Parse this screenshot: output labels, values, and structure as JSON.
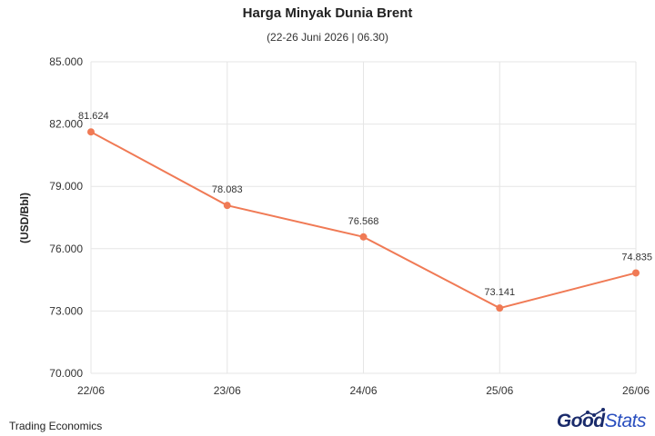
{
  "chart_data": {
    "type": "line",
    "title": "Harga Minyak Dunia Brent",
    "subtitle": "(22-26 Juni 2026 | 06.30)",
    "xlabel": "",
    "ylabel": "(USD/Bbl)",
    "categories": [
      "22/06",
      "23/06",
      "24/06",
      "25/06",
      "26/06"
    ],
    "series": [
      {
        "values": [
          81.624,
          78.083,
          76.568,
          73.141,
          74.835
        ],
        "labels": [
          "81.624",
          "78.083",
          "76.568",
          "73.141",
          "74.835"
        ],
        "color": "#f07a55"
      }
    ],
    "ylim": [
      70,
      85
    ],
    "yticks": [
      70,
      73,
      76,
      79,
      82,
      85
    ],
    "ytick_labels": [
      "70.000",
      "73.000",
      "76.000",
      "79.000",
      "82.000",
      "85.000"
    ],
    "grid": true,
    "gridColor": "#e6e6e6"
  },
  "footer": {
    "source": "Trading Economics",
    "logo_part1": "Good",
    "logo_part2": "Stats"
  }
}
